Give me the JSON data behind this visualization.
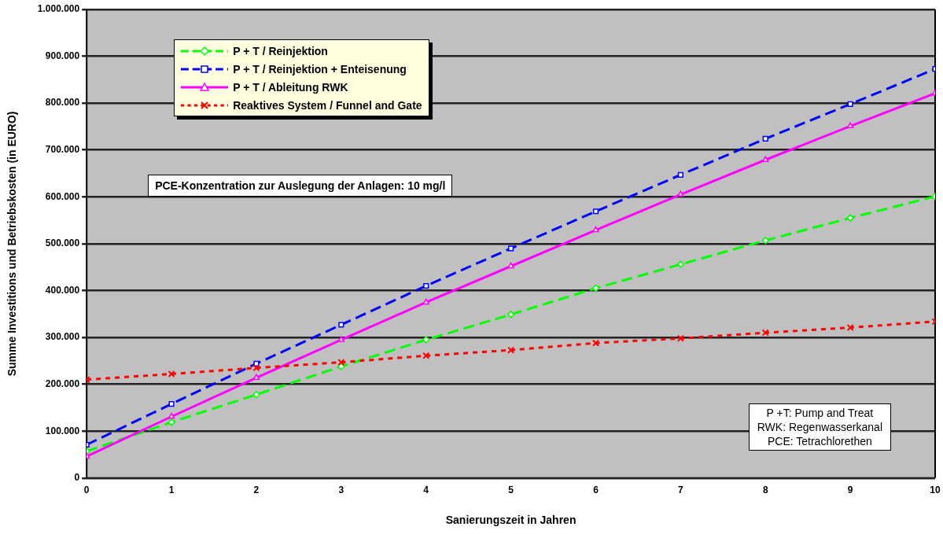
{
  "chart_data": {
    "type": "line",
    "xlabel": "Sanierungszeit in Jahren",
    "ylabel": "Summe Investitions und Betriebskosten (in EURO)",
    "x": [
      0,
      1,
      2,
      3,
      4,
      5,
      6,
      7,
      8,
      9,
      10
    ],
    "xlim": [
      0,
      10
    ],
    "xticks": [
      0,
      1,
      2,
      3,
      4,
      5,
      6,
      7,
      8,
      9,
      10
    ],
    "ylim": [
      0,
      1000000
    ],
    "yticks": [
      {
        "value": 0,
        "label": "0"
      },
      {
        "value": 100000,
        "label": "100.000"
      },
      {
        "value": 200000,
        "label": "200.000"
      },
      {
        "value": 300000,
        "label": "300.000"
      },
      {
        "value": 400000,
        "label": "400.000"
      },
      {
        "value": 500000,
        "label": "500.000"
      },
      {
        "value": 600000,
        "label": "600.000"
      },
      {
        "value": 700000,
        "label": "700.000"
      },
      {
        "value": 800000,
        "label": "800.000"
      },
      {
        "value": 900000,
        "label": "900.000"
      },
      {
        "value": 1000000,
        "label": "1.000.000"
      }
    ],
    "grid": "y",
    "legend": "top left",
    "series": [
      {
        "name": "P + T / Reinjektion",
        "color": "#00ff00",
        "marker": "diamond",
        "line_style": "dashed",
        "values": [
          57000,
          119000,
          178000,
          238000,
          295000,
          349000,
          405000,
          456000,
          507000,
          555000,
          601000
        ]
      },
      {
        "name": "P + T / Reinjektion + Enteisenung",
        "color": "#0000ff",
        "marker": "square",
        "line_style": "dashed",
        "values": [
          71000,
          158000,
          244000,
          327000,
          410000,
          490000,
          569000,
          647000,
          724000,
          798000,
          873000
        ]
      },
      {
        "name": "P + T / Ableitung RWK",
        "color": "#ff00ff",
        "marker": "triangle",
        "line_style": "solid",
        "values": [
          46000,
          131000,
          214000,
          295000,
          375000,
          452000,
          529000,
          605000,
          679000,
          751000,
          821000
        ]
      },
      {
        "name": "Reaktives System / Funnel and Gate",
        "color": "#ff0000",
        "marker": "cross",
        "line_style": "dotted",
        "values": [
          210000,
          222000,
          235000,
          247000,
          261000,
          273000,
          288000,
          298000,
          310000,
          321000,
          334000
        ]
      }
    ],
    "annotations": [
      "PCE-Konzentration zur Auslegung der Anlagen: 10 mg/l",
      "P +T: Pump and Treat\nRWK: Regenwasserkanal\nPCE: Tetrachlorethen"
    ]
  }
}
